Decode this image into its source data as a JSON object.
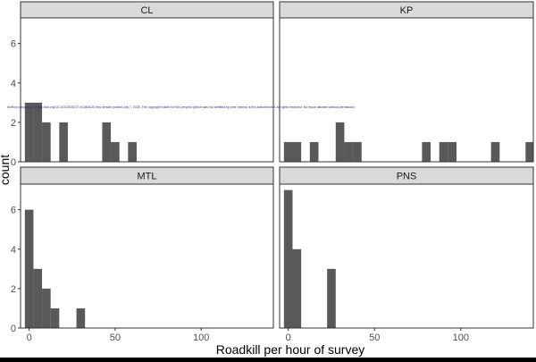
{
  "chart_data": {
    "type": "bar",
    "xlabel": "Roadkill per hour of survey",
    "ylabel": "count",
    "xlim": [
      -5,
      142
    ],
    "ylim": [
      0,
      7.3
    ],
    "x_ticks": [
      0,
      50,
      100
    ],
    "y_ticks": [
      0,
      2,
      4,
      6
    ],
    "bin_width": 5,
    "bar_color": "#595959",
    "strip_color": "#d9d9d9",
    "grid": false,
    "legend": "none",
    "panels": [
      {
        "name": "CL",
        "bins": [
          {
            "x0": -2.5,
            "x1": 2.5,
            "count": 3
          },
          {
            "x0": 2.5,
            "x1": 7.5,
            "count": 3
          },
          {
            "x0": 7.5,
            "x1": 12.5,
            "count": 2
          },
          {
            "x0": 17.5,
            "x1": 22.5,
            "count": 2
          },
          {
            "x0": 42.5,
            "x1": 47.5,
            "count": 2
          },
          {
            "x0": 47.5,
            "x1": 52.5,
            "count": 1
          },
          {
            "x0": 57.5,
            "x1": 62.5,
            "count": 1
          }
        ]
      },
      {
        "name": "KP",
        "bins": [
          {
            "x0": -2.5,
            "x1": 2.5,
            "count": 1
          },
          {
            "x0": 2.5,
            "x1": 7.5,
            "count": 1
          },
          {
            "x0": 12.5,
            "x1": 17.5,
            "count": 1
          },
          {
            "x0": 27.5,
            "x1": 32.5,
            "count": 2
          },
          {
            "x0": 32.5,
            "x1": 37.5,
            "count": 1
          },
          {
            "x0": 37.5,
            "x1": 42.5,
            "count": 1
          },
          {
            "x0": 77.5,
            "x1": 82.5,
            "count": 1
          },
          {
            "x0": 87.5,
            "x1": 92.5,
            "count": 1
          },
          {
            "x0": 92.5,
            "x1": 97.5,
            "count": 1
          },
          {
            "x0": 117.5,
            "x1": 122.5,
            "count": 1
          },
          {
            "x0": 137.5,
            "x1": 142.5,
            "count": 1
          }
        ]
      },
      {
        "name": "MTL",
        "bins": [
          {
            "x0": -2.5,
            "x1": 2.5,
            "count": 6
          },
          {
            "x0": 2.5,
            "x1": 7.5,
            "count": 3
          },
          {
            "x0": 7.5,
            "x1": 12.5,
            "count": 2
          },
          {
            "x0": 12.5,
            "x1": 17.5,
            "count": 1
          },
          {
            "x0": 27.5,
            "x1": 32.5,
            "count": 1
          }
        ]
      },
      {
        "name": "PNS",
        "bins": [
          {
            "x0": -2.5,
            "x1": 2.5,
            "count": 7
          },
          {
            "x0": 2.5,
            "x1": 7.5,
            "count": 4
          },
          {
            "x0": 22.5,
            "x1": 27.5,
            "count": 3
          }
        ]
      }
    ],
    "annotation": "bioRxiv preprint doi: https://doi.org/10.1101/2025.07.04.663123; this version posted July 7, 2025. The copyright holder for this preprint (which was not certified by peer review) is the author/funder. All rights reserved. No reuse allowed without permission."
  }
}
